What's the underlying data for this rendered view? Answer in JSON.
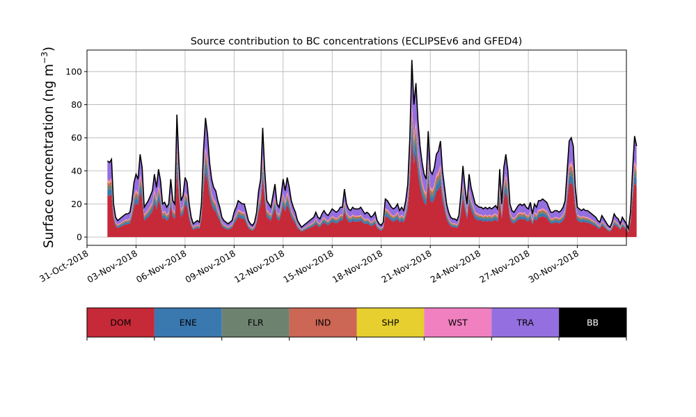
{
  "chart_data": {
    "type": "area",
    "title": "Source contribution to BC concentrations (ECLIPSEv6 and GFED4)",
    "ylabel": "Surface concentration (ng m",
    "ylabel_sup": "−3",
    "ylabel_close": ")",
    "xlabel": "",
    "ylim": [
      -5,
      113
    ],
    "xlim": [
      "2018-10-31T00:00",
      "2018-12-03T00:00"
    ],
    "grid": true,
    "stacked": true,
    "yticks": [
      0,
      20,
      40,
      60,
      80,
      100
    ],
    "xtick_labels": [
      "31-Oct-2018",
      "03-Nov-2018",
      "06-Nov-2018",
      "09-Nov-2018",
      "12-Nov-2018",
      "15-Nov-2018",
      "18-Nov-2018",
      "21-Nov-2018",
      "24-Nov-2018",
      "27-Nov-2018",
      "30-Nov-2018"
    ],
    "xtick_dates": [
      "2018-10-31",
      "2018-11-03",
      "2018-11-06",
      "2018-11-09",
      "2018-11-12",
      "2018-11-15",
      "2018-11-18",
      "2018-11-21",
      "2018-11-24",
      "2018-11-27",
      "2018-11-30"
    ],
    "x_start": "2018-11-01T06:00",
    "x_step_hours": 3,
    "total": [
      46,
      45,
      47,
      20,
      12,
      10,
      11,
      12,
      13,
      14,
      14,
      15,
      22,
      33,
      38,
      35,
      50,
      42,
      18,
      20,
      22,
      25,
      28,
      38,
      30,
      41,
      34,
      20,
      21,
      18,
      20,
      35,
      22,
      20,
      74,
      45,
      22,
      25,
      36,
      33,
      20,
      12,
      8,
      9,
      10,
      9,
      20,
      52,
      72,
      62,
      45,
      35,
      30,
      28,
      22,
      18,
      12,
      10,
      9,
      8,
      9,
      10,
      15,
      18,
      22,
      21,
      20,
      20,
      15,
      10,
      8,
      7,
      9,
      15,
      28,
      35,
      66,
      40,
      22,
      20,
      18,
      25,
      32,
      20,
      18,
      25,
      35,
      28,
      36,
      30,
      22,
      18,
      15,
      10,
      8,
      6,
      7,
      8,
      9,
      10,
      11,
      12,
      15,
      12,
      11,
      14,
      16,
      14,
      13,
      15,
      17,
      16,
      15,
      16,
      18,
      18,
      29,
      20,
      17,
      16,
      18,
      17,
      17,
      17,
      18,
      16,
      14,
      15,
      14,
      12,
      13,
      15,
      10,
      8,
      7,
      9,
      23,
      22,
      20,
      18,
      17,
      18,
      20,
      16,
      18,
      16,
      22,
      32,
      60,
      107,
      80,
      93,
      70,
      55,
      45,
      38,
      35,
      64,
      40,
      38,
      42,
      50,
      52,
      58,
      40,
      30,
      20,
      15,
      12,
      11,
      11,
      10,
      13,
      26,
      43,
      30,
      20,
      38,
      30,
      25,
      20,
      19,
      18,
      18,
      17,
      18,
      17,
      18,
      17,
      18,
      19,
      17,
      41,
      20,
      42,
      50,
      40,
      20,
      16,
      15,
      17,
      19,
      20,
      19,
      20,
      18,
      17,
      21,
      14,
      20,
      18,
      22,
      22,
      23,
      22,
      21,
      18,
      15,
      15,
      16,
      16,
      15,
      16,
      18,
      22,
      40,
      58,
      60,
      55,
      30,
      18,
      17,
      16,
      17,
      16,
      16,
      15,
      14,
      13,
      12,
      10,
      9,
      13,
      11,
      9,
      7,
      6,
      9,
      14,
      12,
      11,
      8,
      12,
      10,
      8,
      5,
      15,
      40,
      61,
      55
    ],
    "fractions": {
      "DOM": 0.55,
      "ENE": 0.08,
      "FLR": 0.05,
      "IND": 0.04,
      "SHP": 0.01,
      "WST": 0.03,
      "TRA": 0.24
    },
    "series": [
      {
        "name": "DOM",
        "color": "#c62938"
      },
      {
        "name": "ENE",
        "color": "#3a78b0"
      },
      {
        "name": "FLR",
        "color": "#6e8270"
      },
      {
        "name": "IND",
        "color": "#cc6655"
      },
      {
        "name": "SHP",
        "color": "#e6cf2e"
      },
      {
        "name": "WST",
        "color": "#f080c0"
      },
      {
        "name": "TRA",
        "color": "#946fdf"
      },
      {
        "name": "BB",
        "color": "#000000"
      }
    ],
    "legend_placement": "bottom"
  }
}
